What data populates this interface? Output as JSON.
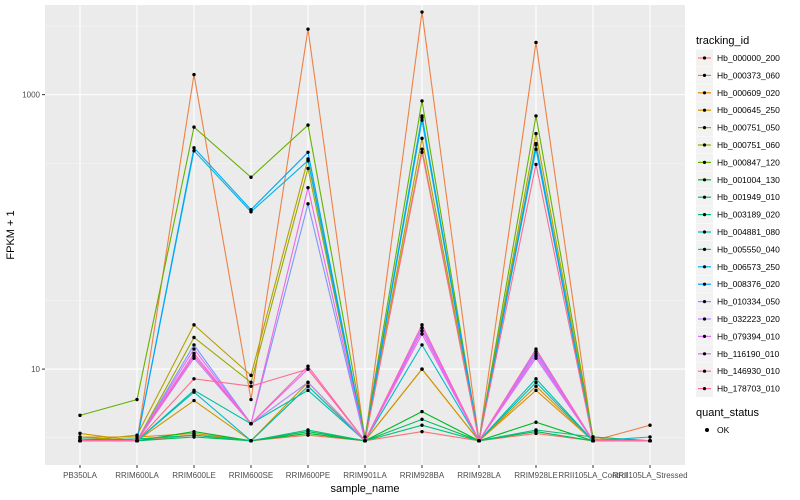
{
  "chart_data": {
    "type": "line",
    "xlabel": "sample_name",
    "ylabel": "FPKM + 1",
    "y_scale": "log10",
    "ylim": [
      2,
      4500
    ],
    "y_ticks": [
      10,
      1000
    ],
    "y_tick_labels": [
      "10",
      "1000"
    ],
    "categories": [
      "PB350LA",
      "RRIM600LA",
      "RRIM600LE",
      "RRIM600SE",
      "RRIM600PE",
      "RRIM901LA",
      "RRIM928BA",
      "RRIM928LA",
      "RRIM928LE",
      "RRII105LA_Control",
      "RRII105LA_Stressed"
    ],
    "legend_title": "tracking_id",
    "status_legend_title": "quant_status",
    "status_legend_label": "OK",
    "series": [
      {
        "name": "Hb_000000_200",
        "color": "#F8766D",
        "values": [
          3.0,
          3.0,
          3.3,
          3.0,
          3.3,
          3.0,
          3.5,
          3.0,
          3.4,
          3.0,
          3.0
        ]
      },
      {
        "name": "Hb_000373_060",
        "color": "#EE8044",
        "values": [
          3.1,
          3.0,
          1400,
          6.0,
          3000,
          3.0,
          4000,
          3.0,
          2400,
          3.0,
          3.9
        ]
      },
      {
        "name": "Hb_000609_020",
        "color": "#DE8C00",
        "values": [
          3.2,
          3.2,
          3.4,
          3.0,
          7.5,
          3.0,
          10.0,
          3.0,
          7.0,
          3.0,
          3.0
        ]
      },
      {
        "name": "Hb_000645_250",
        "color": "#CD9600",
        "values": [
          3.4,
          3.0,
          5.9,
          3.0,
          8.0,
          3.0,
          10.0,
          3.0,
          7.5,
          3.0,
          3.0
        ]
      },
      {
        "name": "Hb_000751_050",
        "color": "#B79F00",
        "values": [
          3.0,
          3.3,
          21.0,
          9.0,
          340,
          3.0,
          480,
          3.0,
          520,
          3.1,
          3.0
        ]
      },
      {
        "name": "Hb_000751_060",
        "color": "#9CA700",
        "values": [
          3.2,
          3.0,
          17.0,
          8.0,
          290,
          3.0,
          400,
          3.0,
          440,
          3.0,
          3.0
        ]
      },
      {
        "name": "Hb_000847_120",
        "color": "#64B200",
        "values": [
          4.6,
          6.0,
          580,
          250,
          600,
          3.2,
          900,
          3.0,
          700,
          3.2,
          3.0
        ]
      },
      {
        "name": "Hb_001004_130",
        "color": "#00B81F",
        "values": [
          3.0,
          3.0,
          3.5,
          3.0,
          3.4,
          3.0,
          4.9,
          3.0,
          4.1,
          3.0,
          3.0
        ]
      },
      {
        "name": "Hb_001949_010",
        "color": "#00BC59",
        "values": [
          3.1,
          3.0,
          3.2,
          3.0,
          3.5,
          3.0,
          4.3,
          3.0,
          3.5,
          3.0,
          3.0
        ]
      },
      {
        "name": "Hb_003189_020",
        "color": "#00BF7D",
        "values": [
          3.0,
          3.1,
          3.3,
          3.0,
          3.6,
          3.0,
          3.9,
          3.0,
          3.6,
          3.2,
          3.0
        ]
      },
      {
        "name": "Hb_004881_080",
        "color": "#00C0A3",
        "values": [
          3.0,
          3.0,
          7.0,
          4.0,
          7.0,
          3.0,
          700,
          3.0,
          8.5,
          3.0,
          3.0
        ]
      },
      {
        "name": "Hb_005550_040",
        "color": "#00BCC4",
        "values": [
          3.0,
          3.0,
          6.8,
          3.0,
          7.5,
          3.0,
          15.0,
          3.0,
          8.0,
          3.0,
          3.2
        ]
      },
      {
        "name": "Hb_006573_250",
        "color": "#00B5E0",
        "values": [
          3.0,
          3.0,
          390,
          140,
          330,
          3.0,
          650,
          3.0,
          430,
          3.0,
          3.0
        ]
      },
      {
        "name": "Hb_008376_020",
        "color": "#00A6FF",
        "values": [
          3.0,
          3.0,
          410,
          145,
          380,
          3.0,
          680,
          3.0,
          400,
          3.0,
          3.0
        ]
      },
      {
        "name": "Hb_010334_050",
        "color": "#7997FF",
        "values": [
          3.0,
          3.0,
          15.0,
          4.0,
          160,
          3.0,
          20.0,
          3.0,
          13.5,
          3.0,
          3.0
        ]
      },
      {
        "name": "Hb_032223_020",
        "color": "#B983FF",
        "values": [
          3.0,
          3.0,
          12.0,
          4.0,
          8.0,
          3.0,
          20.0,
          3.0,
          12.0,
          3.0,
          3.0
        ]
      },
      {
        "name": "Hb_079394_010",
        "color": "#DE71F9",
        "values": [
          3.0,
          3.0,
          14.0,
          4.0,
          10.0,
          3.0,
          18.0,
          3.0,
          13.0,
          3.0,
          3.0
        ]
      },
      {
        "name": "Hb_116190_010",
        "color": "#F365E6",
        "values": [
          3.0,
          3.0,
          13.0,
          4.0,
          210,
          3.0,
          19.0,
          3.0,
          12.5,
          3.0,
          3.0
        ]
      },
      {
        "name": "Hb_146930_010",
        "color": "#FF62BC",
        "values": [
          3.0,
          3.0,
          12.5,
          4.0,
          10.5,
          3.0,
          21.0,
          3.0,
          14.0,
          3.0,
          3.0
        ]
      },
      {
        "name": "Hb_178703_010",
        "color": "#FF6C91",
        "values": [
          3.0,
          3.0,
          8.5,
          7.5,
          10.0,
          3.0,
          380,
          3.0,
          310,
          3.0,
          3.0
        ]
      }
    ]
  }
}
